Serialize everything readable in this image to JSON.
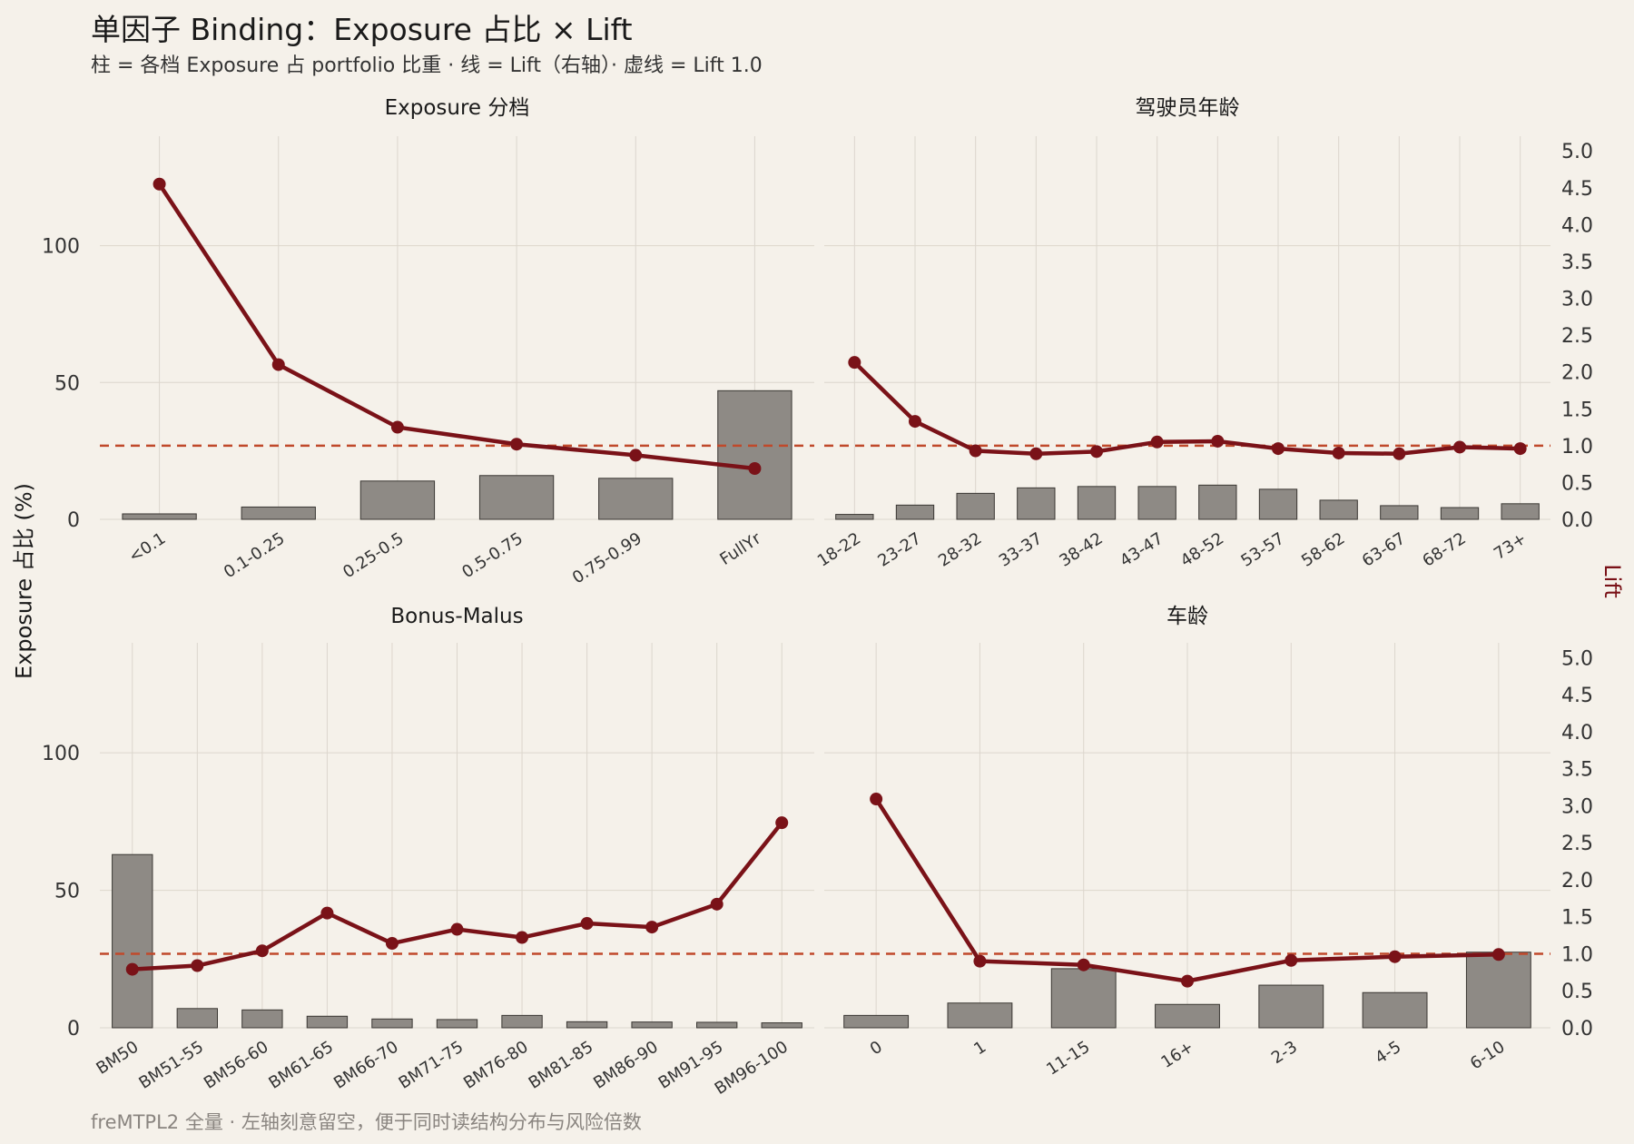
{
  "title": "单因子 Binding：Exposure 占比 × Lift",
  "subtitle": "柱 = 各档 Exposure 占 portfolio 比重 ·   线 = Lift（右轴）·   虚线 = Lift 1.0",
  "caption": "freMTPL2 全量 ·   左轴刻意留空，便于同时读结构分布与风险倍数",
  "y_left_label": "Exposure 占比 (%)",
  "y_right_label": "Lift",
  "colors": {
    "background": "#f5f1ea",
    "bar_fill": "#8e8a85",
    "bar_stroke": "#3a3733",
    "lift_line": "#7a1218",
    "reference_line": "#c0492b",
    "grid": "#dcd6cd"
  },
  "chart_data": [
    {
      "type": "bar",
      "panel_title": "Exposure 分档",
      "categories": [
        "<0.1",
        "0.1-0.25",
        "0.25-0.5",
        "0.5-0.75",
        "0.75-0.99",
        "FullYr"
      ],
      "series": [
        {
          "name": "Exposure 占比",
          "axis": "left",
          "kind": "bar",
          "values": [
            2,
            4.5,
            14,
            16,
            15,
            47
          ]
        },
        {
          "name": "Lift",
          "axis": "right",
          "kind": "line",
          "values": [
            4.55,
            2.1,
            1.25,
            1.02,
            0.87,
            0.69
          ]
        }
      ],
      "ylim_left": [
        0,
        140
      ],
      "ylim_right": [
        0,
        5.2
      ],
      "y_left_ticks": [
        0,
        50,
        100
      ],
      "reference_line": 1.0
    },
    {
      "type": "bar",
      "panel_title": "驾驶员年龄",
      "categories": [
        "18-22",
        "23-27",
        "28-32",
        "33-37",
        "38-42",
        "43-47",
        "48-52",
        "53-57",
        "58-62",
        "63-67",
        "68-72",
        "73+"
      ],
      "series": [
        {
          "name": "Exposure 占比",
          "axis": "left",
          "kind": "bar",
          "values": [
            1.8,
            5.2,
            9.5,
            11.5,
            12,
            12,
            12.5,
            11,
            7,
            5,
            4.3,
            5.7
          ]
        },
        {
          "name": "Lift",
          "axis": "right",
          "kind": "line",
          "values": [
            2.13,
            1.33,
            0.93,
            0.89,
            0.92,
            1.05,
            1.06,
            0.96,
            0.9,
            0.89,
            0.98,
            0.96
          ]
        }
      ],
      "ylim_left": [
        0,
        140
      ],
      "ylim_right": [
        0,
        5.2
      ],
      "y_right_ticks": [
        "0.0",
        "0.5",
        "1.0",
        "1.5",
        "2.0",
        "2.5",
        "3.0",
        "3.5",
        "4.0",
        "4.5",
        "5.0"
      ],
      "reference_line": 1.0
    },
    {
      "type": "bar",
      "panel_title": "Bonus-Malus",
      "categories": [
        "BM50",
        "BM51-55",
        "BM56-60",
        "BM61-65",
        "BM66-70",
        "BM71-75",
        "BM76-80",
        "BM81-85",
        "BM86-90",
        "BM91-95",
        "BM96-100"
      ],
      "series": [
        {
          "name": "Exposure 占比",
          "axis": "left",
          "kind": "bar",
          "values": [
            63,
            7,
            6.5,
            4.2,
            3.2,
            3,
            4.5,
            2.2,
            2.1,
            2,
            1.8
          ]
        },
        {
          "name": "Lift",
          "axis": "right",
          "kind": "line",
          "values": [
            0.79,
            0.84,
            1.04,
            1.55,
            1.14,
            1.33,
            1.22,
            1.41,
            1.36,
            1.67,
            2.77
          ]
        }
      ],
      "ylim_left": [
        0,
        140
      ],
      "ylim_right": [
        0,
        5.2
      ],
      "y_left_ticks": [
        0,
        50,
        100
      ],
      "reference_line": 1.0
    },
    {
      "type": "bar",
      "panel_title": "车龄",
      "categories": [
        "0",
        "1",
        "11-15",
        "16+",
        "2-3",
        "4-5",
        "6-10"
      ],
      "series": [
        {
          "name": "Exposure 占比",
          "axis": "left",
          "kind": "bar",
          "values": [
            4.5,
            9,
            21.5,
            8.5,
            15.5,
            12.8,
            27.5
          ]
        },
        {
          "name": "Lift",
          "axis": "right",
          "kind": "line",
          "values": [
            3.09,
            0.9,
            0.85,
            0.63,
            0.91,
            0.96,
            0.99
          ]
        }
      ],
      "ylim_left": [
        0,
        140
      ],
      "ylim_right": [
        0,
        5.2
      ],
      "y_right_ticks": [
        "0.0",
        "0.5",
        "1.0",
        "1.5",
        "2.0",
        "2.5",
        "3.0",
        "3.5",
        "4.0",
        "4.5",
        "5.0"
      ],
      "reference_line": 1.0
    }
  ]
}
